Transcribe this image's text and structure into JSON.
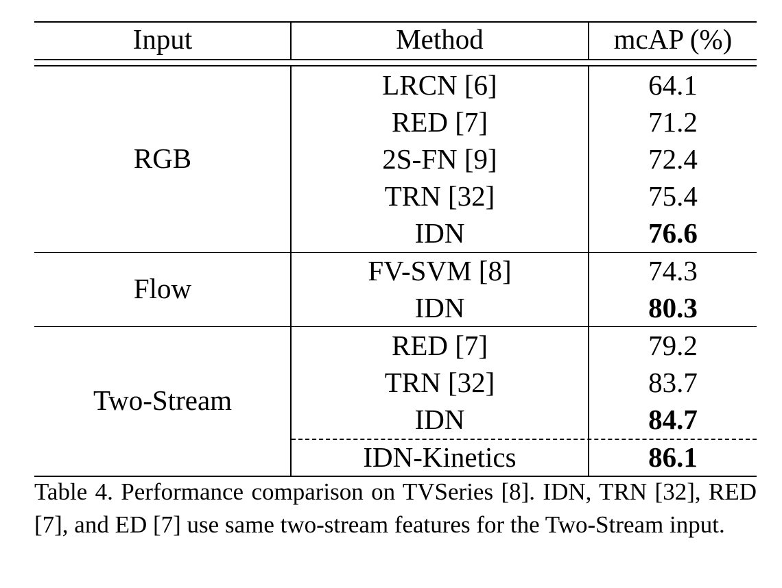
{
  "table": {
    "headers": [
      "Input",
      "Method",
      "mcAP (%)"
    ],
    "groups": [
      {
        "input": "RGB",
        "rows": [
          {
            "method": "LRCN [6]",
            "score": "64.1",
            "bold": false
          },
          {
            "method": "RED [7]",
            "score": "71.2",
            "bold": false
          },
          {
            "method": "2S-FN [9]",
            "score": "72.4",
            "bold": false
          },
          {
            "method": "TRN [32]",
            "score": "75.4",
            "bold": false
          },
          {
            "method": "IDN",
            "score": "76.6",
            "bold": true
          }
        ]
      },
      {
        "input": "Flow",
        "rows": [
          {
            "method": "FV-SVM [8]",
            "score": "74.3",
            "bold": false
          },
          {
            "method": "IDN",
            "score": "80.3",
            "bold": true
          }
        ]
      },
      {
        "input": "Two-Stream",
        "rows": [
          {
            "method": "RED [7]",
            "score": "79.2",
            "bold": false
          },
          {
            "method": "TRN [32]",
            "score": "83.7",
            "bold": false
          },
          {
            "method": "IDN",
            "score": "84.7",
            "bold": true
          },
          {
            "method": "IDN-Kinetics",
            "score": "86.1",
            "bold": true
          }
        ]
      }
    ]
  },
  "caption": "Table 4. Performance comparison on TVSeries [8]. IDN, TRN [32], RED [7], and ED [7] use same two-stream features for the Two-Stream input."
}
